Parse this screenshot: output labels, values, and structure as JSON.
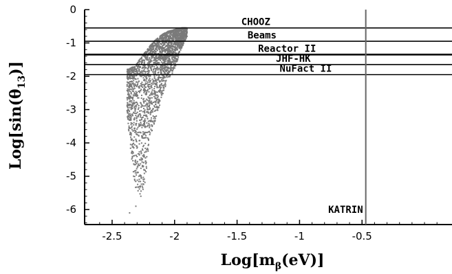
{
  "chart_data": {
    "type": "scatter",
    "title": "",
    "xlabel": "Log[m_β(eV)]",
    "xlabel_main": "Log[m",
    "xlabel_sub": "β",
    "xlabel_tail": "(eV)]",
    "ylabel": "Log[sin(θ_13)]",
    "ylabel_main": "Log[sin(θ",
    "ylabel_sub": "13",
    "ylabel_tail": ")]",
    "xlim": [
      -2.72,
      0.22
    ],
    "ylim": [
      -6.45,
      0
    ],
    "grid": false,
    "x_ticks": [
      -2.5,
      -2,
      -1.5,
      -1,
      -0.5
    ],
    "x_tick_labels": [
      "-2.5",
      "-2",
      "-1.5",
      "-1",
      "-0.5"
    ],
    "y_ticks": [
      0,
      -1,
      -2,
      -3,
      -4,
      -5,
      -6
    ],
    "y_tick_labels": [
      "0",
      "-1",
      "-2",
      "-3",
      "-4",
      "-5",
      "-6"
    ],
    "point_color": "#7a7a7a",
    "line_color": "#000000",
    "sensitivity_lines": [
      {
        "label": "CHOOZ",
        "y": -0.55,
        "label_x": -1.35
      },
      {
        "label": "Beams",
        "y": -0.95,
        "label_x": -1.3
      },
      {
        "label": "Reactor II",
        "y": -1.35,
        "label_x": -1.1
      },
      {
        "label": "JHF-HK",
        "y": -1.65,
        "label_x": -1.05
      },
      {
        "label": "NuFact II",
        "y": -1.95,
        "label_x": -0.95
      }
    ],
    "vertical_lines": [
      {
        "label": "KATRIN",
        "x": -0.47,
        "label_y": -6.0
      }
    ],
    "scatter_region": {
      "description_points_x": [
        -2.38,
        -2.32,
        -2.28,
        -2.24,
        -2.2,
        -2.15,
        -2.1,
        -2.05,
        -2.0,
        -1.95,
        -1.9
      ],
      "top_y": [
        -1.8,
        -1.7,
        -1.5,
        -1.3,
        -1.1,
        -0.9,
        -0.75,
        -0.65,
        -0.6,
        -0.55,
        -0.55
      ],
      "bottom_y": [
        -3.2,
        -5.3,
        -5.6,
        -5.3,
        -3.9,
        -3.3,
        -2.6,
        -2.1,
        -1.8,
        -1.2,
        -0.8
      ],
      "outliers": [
        [
          -2.36,
          -6.1
        ],
        [
          -2.31,
          -5.9
        ],
        [
          -2.27,
          -5.6
        ],
        [
          -2.02,
          -1.75
        ],
        [
          -1.98,
          -1.55
        ]
      ]
    }
  }
}
